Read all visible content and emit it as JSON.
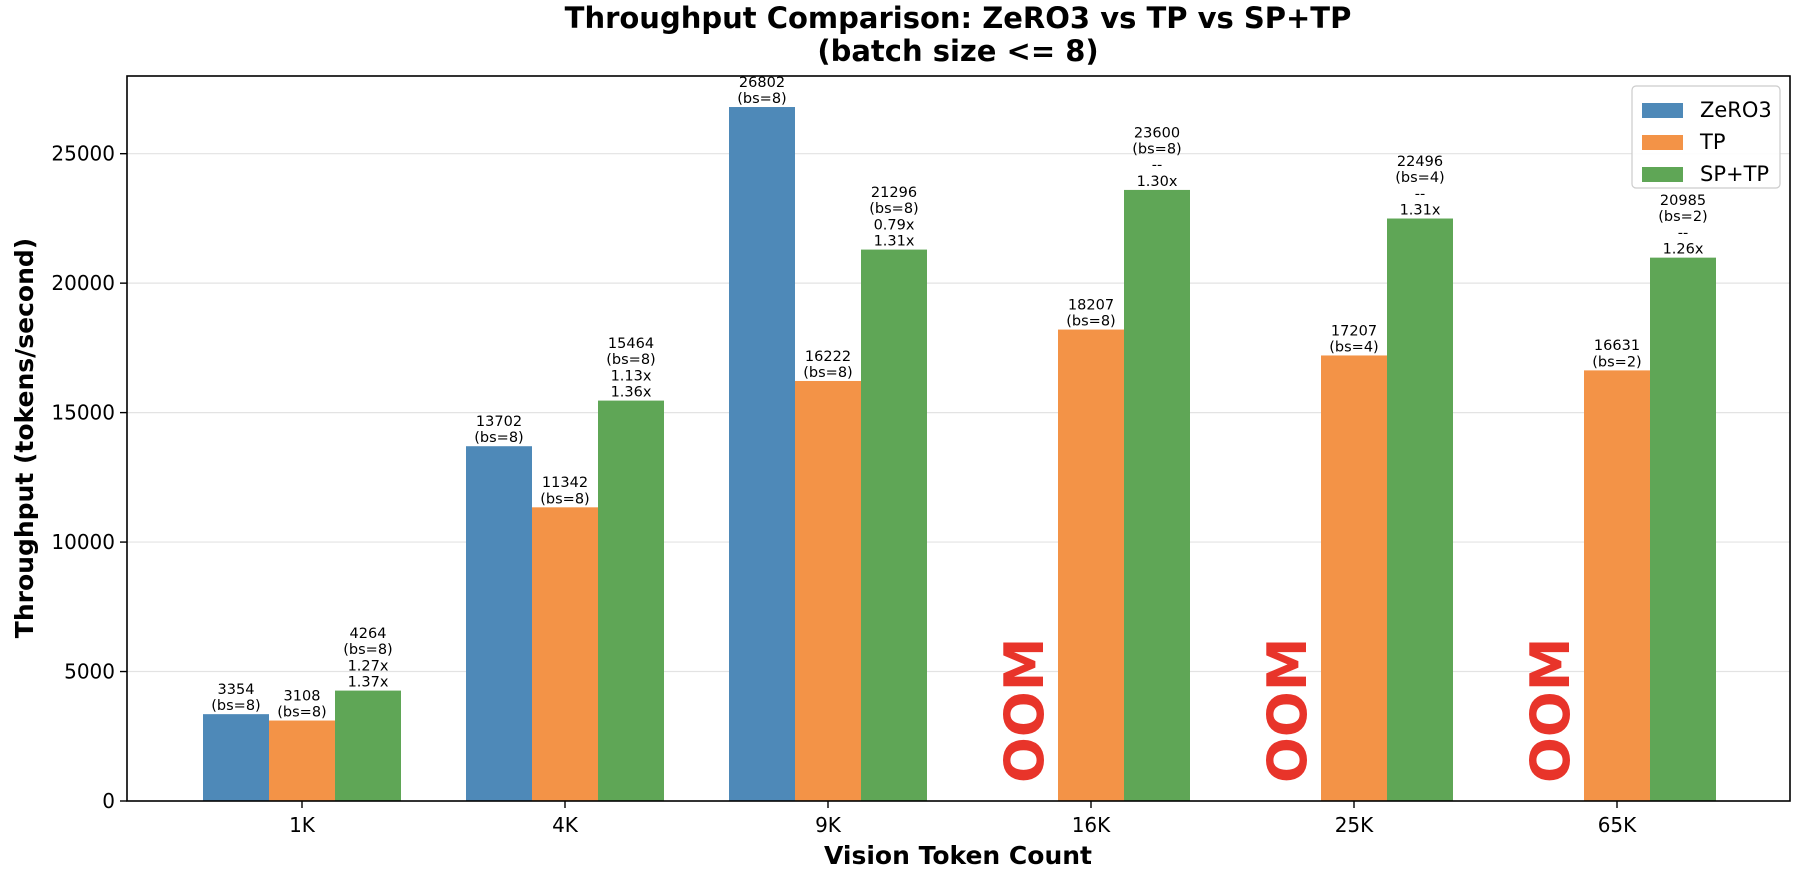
{
  "chart_data": {
    "type": "bar",
    "title": "Throughput Comparison: ZeRO3 vs TP vs SP+TP",
    "subtitle": "(batch size <= 8)",
    "xlabel": "Vision Token Count",
    "ylabel": "Throughput (tokens/second)",
    "ylim": [
      0,
      28000
    ],
    "yticks": [
      0,
      5000,
      10000,
      15000,
      20000,
      25000
    ],
    "grid": "horizontal",
    "legend_position": "top-right",
    "categories": [
      "1K",
      "4K",
      "9K",
      "16K",
      "25K",
      "65K"
    ],
    "oom_text": "OOM",
    "series": [
      {
        "name": "ZeRO3",
        "color": "#4e89b8",
        "values": [
          3354,
          13702,
          26802,
          null,
          null,
          null
        ],
        "labels": [
          [
            "3354",
            "(bs=8)"
          ],
          [
            "13702",
            "(bs=8)"
          ],
          [
            "26802",
            "(bs=8)"
          ],
          null,
          null,
          null
        ]
      },
      {
        "name": "TP",
        "color": "#f39347",
        "values": [
          3108,
          11342,
          16222,
          18207,
          17207,
          16631
        ],
        "labels": [
          [
            "3108",
            "(bs=8)"
          ],
          [
            "11342",
            "(bs=8)"
          ],
          [
            "16222",
            "(bs=8)"
          ],
          [
            "18207",
            "(bs=8)"
          ],
          [
            "17207",
            "(bs=4)"
          ],
          [
            "16631",
            "(bs=2)"
          ]
        ]
      },
      {
        "name": "SP+TP",
        "color": "#5fa656",
        "values": [
          4264,
          15464,
          21296,
          23600,
          22496,
          20985
        ],
        "labels": [
          [
            "4264",
            "(bs=8)",
            "1.27x",
            "1.37x"
          ],
          [
            "15464",
            "(bs=8)",
            "1.13x",
            "1.36x"
          ],
          [
            "21296",
            "(bs=8)",
            "0.79x",
            "1.31x"
          ],
          [
            "23600",
            "(bs=8)",
            "--",
            "1.30x"
          ],
          [
            "22496",
            "(bs=4)",
            "--",
            "1.31x"
          ],
          [
            "20985",
            "(bs=2)",
            "--",
            "1.26x"
          ]
        ]
      }
    ]
  }
}
